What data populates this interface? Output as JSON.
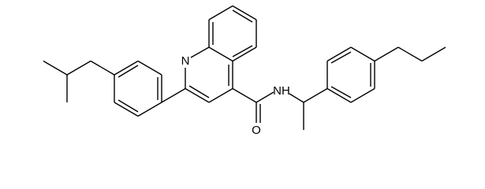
{
  "atoms": [
    {
      "label": "N"
    },
    {
      "label": "O"
    },
    {
      "label": "NH"
    }
  ]
}
